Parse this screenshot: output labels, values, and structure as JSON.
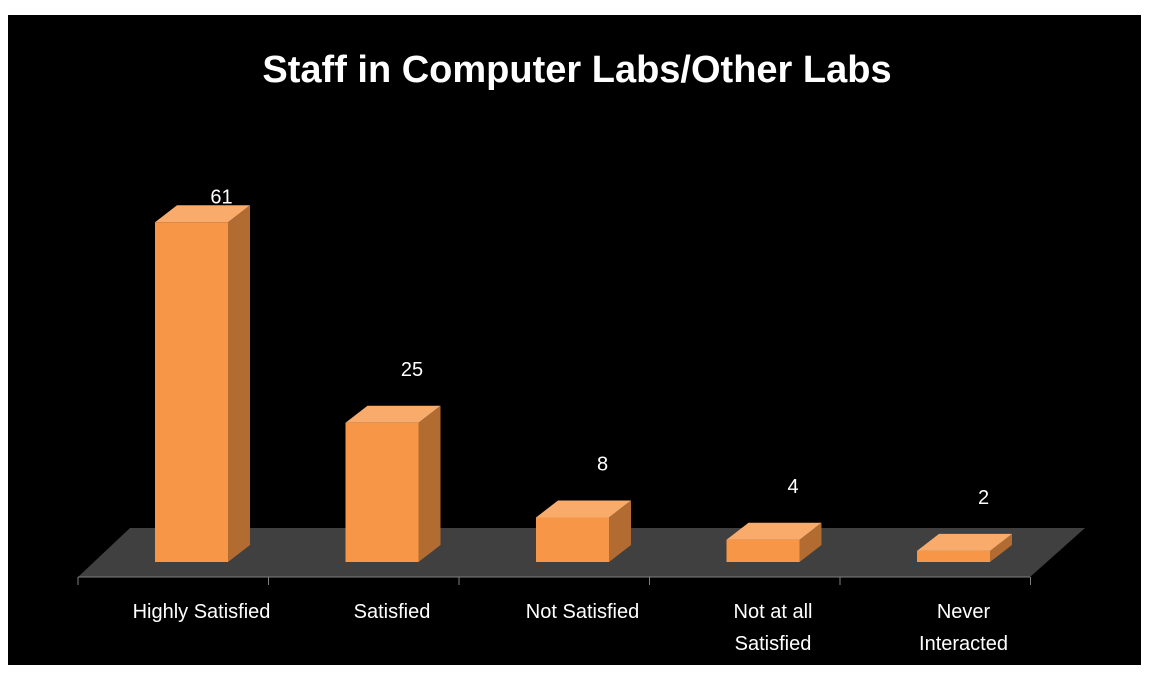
{
  "chart_data": {
    "type": "bar",
    "title": "Staff in Computer Labs/Other Labs",
    "categories": [
      "Highly Satisfied",
      "Satisfied",
      "Not Satisfied",
      "Not at all\nSatisfied",
      "Never\nInteracted"
    ],
    "values": [
      61,
      25,
      8,
      4,
      2
    ],
    "color": "#f79646"
  }
}
